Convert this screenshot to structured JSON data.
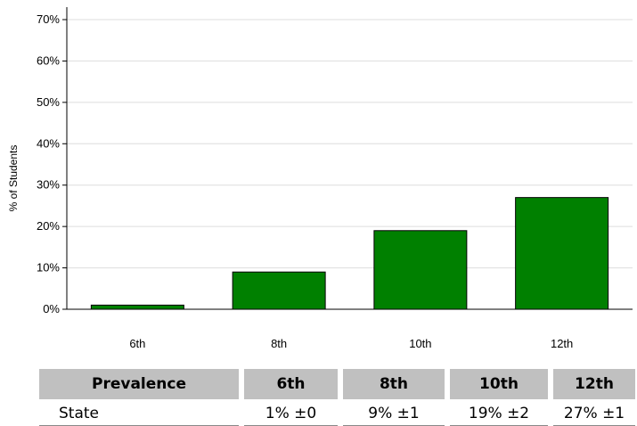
{
  "chart_data": {
    "type": "bar",
    "categories": [
      "6th",
      "8th",
      "10th",
      "12th"
    ],
    "values": [
      1,
      9,
      19,
      27
    ],
    "ylabel": "% of Students",
    "ylim": [
      0,
      70
    ],
    "yticks": [
      "0%",
      "10%",
      "20%",
      "30%",
      "40%",
      "50%",
      "60%",
      "70%"
    ],
    "grid": true,
    "bar_color": "#008000"
  },
  "table": {
    "header": [
      "Prevalence",
      "6th",
      "8th",
      "10th",
      "12th"
    ],
    "rows": [
      {
        "label": "State",
        "cells": [
          "1% ±0",
          "9% ±1",
          "19% ±2",
          "27% ±1"
        ]
      }
    ]
  }
}
